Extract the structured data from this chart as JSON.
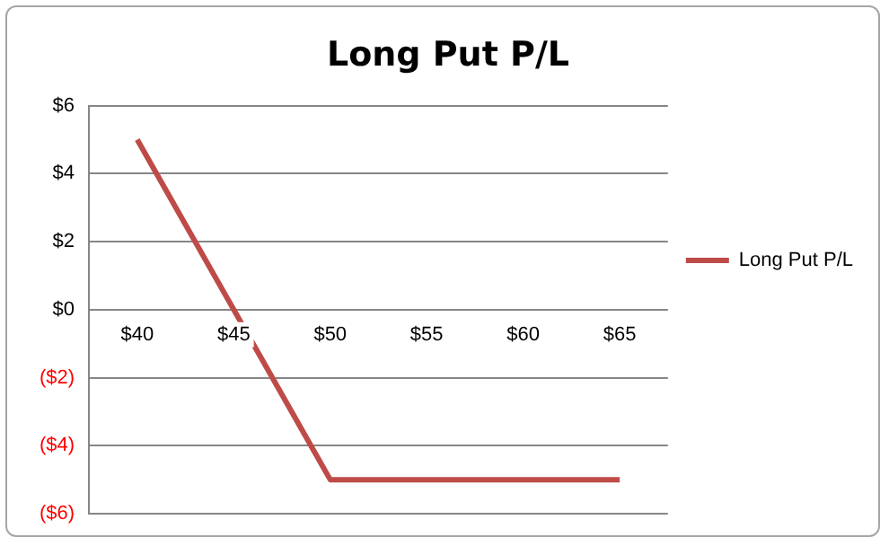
{
  "chart_data": {
    "type": "line",
    "title": "Long Put P/L",
    "categories": [
      "$40",
      "$45",
      "$50",
      "$55",
      "$60",
      "$65"
    ],
    "series": [
      {
        "name": "Long Put P/L",
        "color": "#be4b48",
        "values": [
          5,
          0,
          -5,
          -5,
          -5,
          -5
        ]
      }
    ],
    "ylim": [
      -6,
      6
    ],
    "yticks": [
      {
        "value": -6,
        "label": "($6)"
      },
      {
        "value": -4,
        "label": "($4)"
      },
      {
        "value": -2,
        "label": "($2)"
      },
      {
        "value": 0,
        "label": "$0"
      },
      {
        "value": 2,
        "label": "$2"
      },
      {
        "value": 4,
        "label": "$4"
      },
      {
        "value": 6,
        "label": "$6"
      }
    ],
    "grid": "y",
    "legend": "right",
    "marker": "none",
    "line_style": "solid"
  }
}
